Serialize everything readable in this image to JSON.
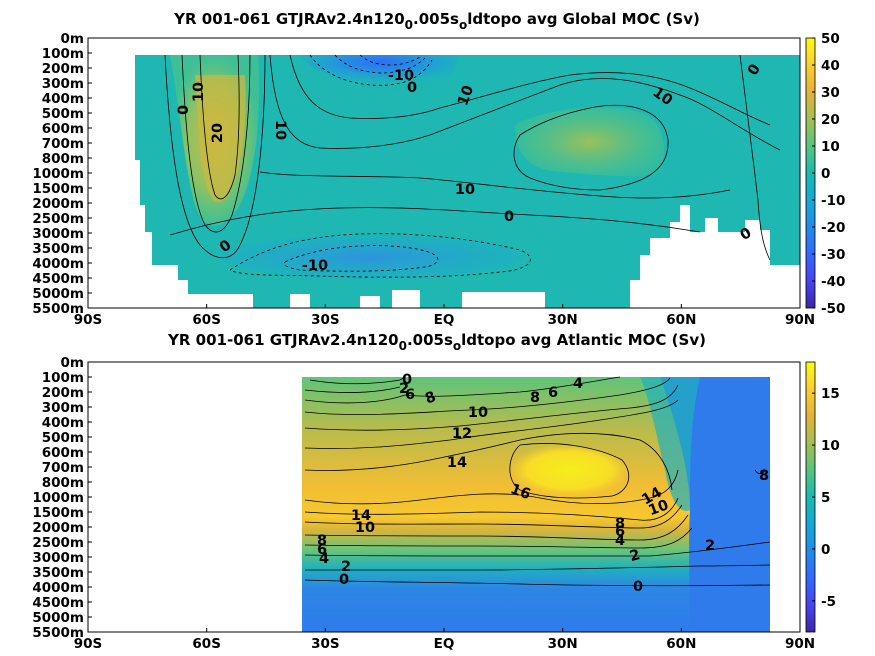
{
  "chart_data": [
    {
      "type": "heatmap",
      "title": "YR 001-061 GTJRAv2.4n120",
      "title_parts": [
        "YR 001-061 GTJRAv2.4n120",
        "0",
        ".005s",
        "o",
        "ldtopo avg  Global MOC (Sv)"
      ],
      "x_ticks": [
        "90S",
        "60S",
        "30S",
        "EQ",
        "30N",
        "60N",
        "90N"
      ],
      "x_values": [
        -90,
        -60,
        -30,
        0,
        30,
        60,
        90
      ],
      "xlim": [
        -90,
        90
      ],
      "y_ticks": [
        "0m",
        "100m",
        "200m",
        "300m",
        "400m",
        "500m",
        "600m",
        "700m",
        "800m",
        "1000m",
        "1500m",
        "2000m",
        "2500m",
        "3000m",
        "3500m",
        "4000m",
        "4500m",
        "5000m",
        "5500m"
      ],
      "colorbar_ticks": [
        "50",
        "40",
        "30",
        "20",
        "10",
        "0",
        "-10",
        "-20",
        "-30",
        "-40",
        "-50"
      ],
      "clim": [
        -50,
        50
      ],
      "contour_labels": [
        "0",
        "10",
        "20",
        "10",
        "-10",
        "0",
        "10",
        "10",
        "0",
        "10",
        "0",
        "0",
        "-10",
        "0"
      ],
      "data_lat_range": [
        -78,
        90
      ]
    },
    {
      "type": "heatmap",
      "title": "YR 001-061 GTJRAv2.4n120",
      "title_parts": [
        "YR 001-061 GTJRAv2.4n120",
        "0",
        ".005s",
        "o",
        "ldtopo avg  Atlantic MOC (Sv)"
      ],
      "x_ticks": [
        "90S",
        "60S",
        "30S",
        "EQ",
        "30N",
        "60N",
        "90N"
      ],
      "x_values": [
        -90,
        -60,
        -30,
        0,
        30,
        60,
        90
      ],
      "xlim": [
        -90,
        90
      ],
      "y_ticks": [
        "0m",
        "100m",
        "200m",
        "300m",
        "400m",
        "500m",
        "600m",
        "700m",
        "800m",
        "1000m",
        "1500m",
        "2000m",
        "2500m",
        "3000m",
        "3500m",
        "4000m",
        "4500m",
        "5000m",
        "5500m"
      ],
      "colorbar_ticks": [
        "15",
        "10",
        "5",
        "0",
        "-5"
      ],
      "clim": [
        -8,
        18
      ],
      "contour_labels": [
        "0",
        "2",
        "6",
        "8",
        "8",
        "6",
        "4",
        "10",
        "12",
        "14",
        "16",
        "14",
        "10",
        "14",
        "10",
        "8",
        "6",
        "4",
        "8",
        "6",
        "4",
        "2",
        "0",
        "2",
        "0",
        "8"
      ],
      "data_lat_range": [
        -30,
        90
      ]
    }
  ]
}
